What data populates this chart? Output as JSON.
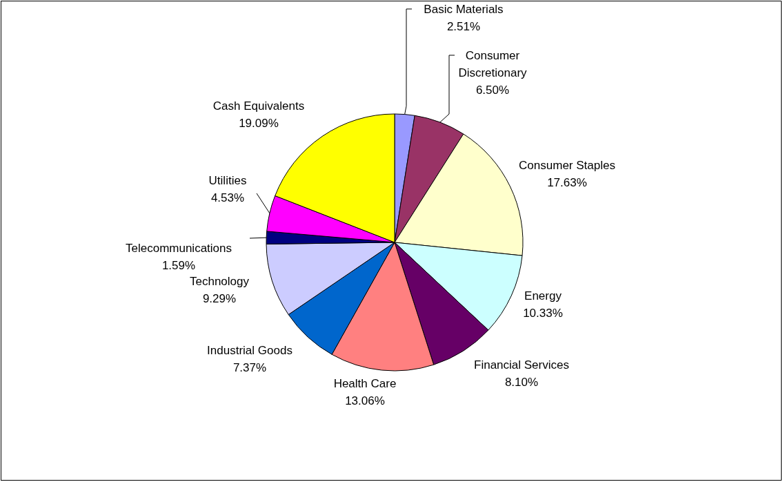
{
  "chart_data": {
    "type": "pie",
    "categories": [
      "Basic Materials",
      "Consumer Discretionary",
      "Consumer Staples",
      "Energy",
      "Financial Services",
      "Health Care",
      "Industrial Goods",
      "Technology",
      "Telecommunications",
      "Utilities",
      "Cash Equivalents"
    ],
    "values": [
      2.51,
      6.5,
      17.63,
      10.33,
      8.1,
      13.06,
      7.37,
      9.29,
      1.59,
      4.53,
      19.09
    ],
    "value_labels": [
      "2.51%",
      "6.50%",
      "17.63%",
      "10.33%",
      "8.10%",
      "13.06%",
      "7.37%",
      "9.29%",
      "1.59%",
      "4.53%",
      "19.09%"
    ],
    "colors": [
      "#9999ff",
      "#993366",
      "#ffffcc",
      "#ccffff",
      "#660066",
      "#ff8080",
      "#0066cc",
      "#ccccff",
      "#000080",
      "#ff00ff",
      "#ffff00"
    ]
  }
}
